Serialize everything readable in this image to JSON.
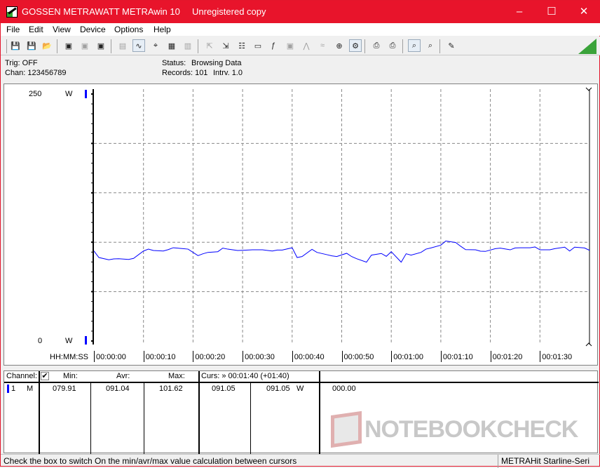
{
  "window": {
    "brand": "GOSSEN METRAWATT",
    "app": "METRAwin 10",
    "license": "Unregistered copy",
    "accent": "#e8142b"
  },
  "menu": [
    "File",
    "Edit",
    "View",
    "Device",
    "Options",
    "Help"
  ],
  "toolbar": [
    {
      "icon": "save-icon"
    },
    {
      "icon": "save-as-icon"
    },
    {
      "icon": "open-folder-icon"
    },
    {
      "icon": "device-read-icon"
    },
    {
      "icon": "device-send-icon",
      "disabled": true
    },
    {
      "icon": "memory-read-icon"
    },
    {
      "icon": "numeric-display-icon",
      "disabled": true
    },
    {
      "icon": "waveform-icon",
      "active": true
    },
    {
      "icon": "crosshair-icon"
    },
    {
      "icon": "table-icon"
    },
    {
      "icon": "histogram-icon",
      "disabled": true
    },
    {
      "icon": "export-icon",
      "disabled": true
    },
    {
      "icon": "import-icon"
    },
    {
      "icon": "data-settings-icon"
    },
    {
      "icon": "monitor-icon"
    },
    {
      "icon": "function-icon"
    },
    {
      "icon": "device-settings-icon",
      "disabled": true
    },
    {
      "icon": "signal-icon",
      "disabled": true
    },
    {
      "icon": "wave-icon",
      "disabled": true
    },
    {
      "icon": "zoom-fit-icon"
    },
    {
      "icon": "run-icon",
      "active": true
    },
    {
      "icon": "print-icon"
    },
    {
      "icon": "print-preview-icon"
    },
    {
      "icon": "zoom-wave-icon",
      "active": true
    },
    {
      "icon": "zoom-search-icon"
    },
    {
      "icon": "comment-icon"
    }
  ],
  "info": {
    "trig": "Trig: OFF",
    "chan": "Chan:  123456789",
    "status_label": "Status:",
    "status_value": "Browsing Data",
    "records": "Records: 101",
    "interval": "Intrv. 1.0"
  },
  "chart_data": {
    "type": "line",
    "ylim": [
      0,
      250
    ],
    "ytick_top": "250",
    "ytick_bottom": "0",
    "yunit_top": "W",
    "yunit_bottom": "W",
    "xlabel": "HH:MM:SS",
    "xlim": [
      0,
      100
    ],
    "xticks": [
      "00:00:00",
      "00:00:10",
      "00:00:20",
      "00:00:30",
      "00:00:40",
      "00:00:50",
      "00:01:00",
      "00:01:10",
      "00:01:20",
      "00:01:30"
    ],
    "grid": true,
    "series": [
      {
        "color": "#0000ff",
        "x": [
          0,
          1,
          3,
          4,
          5,
          7,
          8,
          10,
          11,
          12,
          14,
          15,
          16,
          18,
          19,
          21,
          22,
          23,
          25,
          26,
          27,
          29,
          30,
          32,
          33,
          34,
          36,
          37,
          38,
          40,
          41,
          42,
          44,
          45,
          47,
          48,
          49,
          51,
          52,
          53,
          55,
          56,
          58,
          59,
          60,
          62,
          63,
          64,
          66,
          67,
          68,
          70,
          71,
          73,
          74,
          75,
          77,
          78,
          79,
          81,
          82,
          84,
          85,
          86,
          88,
          89,
          90,
          92,
          93,
          95,
          96,
          97,
          99,
          100
        ],
        "y": [
          91.1,
          84.5,
          82.2,
          83.1,
          83.3,
          82.6,
          83.6,
          91.1,
          93.0,
          91.6,
          91.1,
          92.5,
          94.4,
          93.5,
          93.0,
          86.4,
          88.3,
          89.7,
          90.4,
          94.0,
          93.0,
          91.6,
          91.8,
          92.3,
          92.3,
          92.3,
          91.1,
          92.1,
          92.1,
          94.4,
          84.5,
          85.5,
          92.8,
          89.7,
          87.4,
          86.2,
          85.5,
          88.8,
          85.5,
          83.3,
          79.8,
          86.9,
          88.6,
          85.7,
          90.4,
          79.8,
          88.3,
          86.9,
          89.7,
          93.0,
          94.2,
          97.0,
          101.2,
          99.7,
          95.9,
          92.5,
          92.3,
          90.9,
          90.7,
          93.5,
          94.0,
          92.3,
          94.2,
          94.4,
          94.4,
          95.2,
          92.3,
          92.3,
          93.5,
          95.0,
          91.1,
          95.0,
          94.2,
          91.8
        ]
      }
    ]
  },
  "table": {
    "headers": {
      "channel": "Channel:",
      "min": "Min:",
      "avr": "Avr:",
      "max": "Max:",
      "cursor": "Curs: » 00:01:40 (+01:40)"
    },
    "row": {
      "num": "1",
      "mode": "M",
      "min": "079.91",
      "avr": "091.04",
      "max": "101.62",
      "cur1": "091.05",
      "cur2": "091.05",
      "unit": "W",
      "diff": "000.00"
    },
    "checkbox_checked": true
  },
  "watermark": "NOTEBOOKCHECK",
  "status": {
    "hint": "Check the box to switch On the min/avr/max value calculation between cursors",
    "device": "METRAHit Starline-Seri"
  }
}
